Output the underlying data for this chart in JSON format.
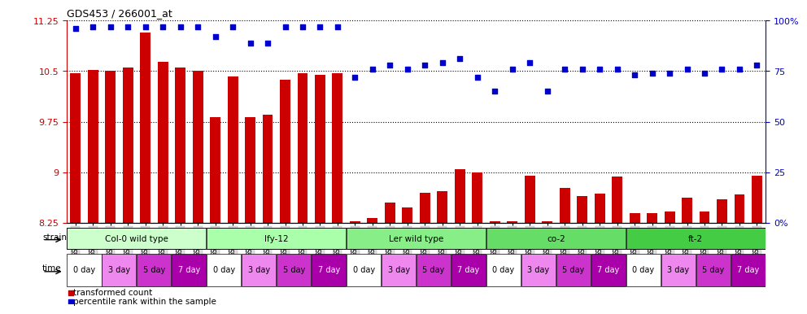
{
  "title": "GDS453 / 266001_at",
  "gsm_labels": [
    "GSM8827",
    "GSM8828",
    "GSM8829",
    "GSM8830",
    "GSM8831",
    "GSM8832",
    "GSM8833",
    "GSM8834",
    "GSM8835",
    "GSM8836",
    "GSM8837",
    "GSM8838",
    "GSM8839",
    "GSM8840",
    "GSM8841",
    "GSM8842",
    "GSM8843",
    "GSM8844",
    "GSM8845",
    "GSM8846",
    "GSM8847",
    "GSM8848",
    "GSM8849",
    "GSM8850",
    "GSM8851",
    "GSM8852",
    "GSM8853",
    "GSM8854",
    "GSM8855",
    "GSM8856",
    "GSM8857",
    "GSM8858",
    "GSM8859",
    "GSM8860",
    "GSM8861",
    "GSM8862",
    "GSM8863",
    "GSM8864",
    "GSM8865",
    "GSM8866"
  ],
  "bar_values": [
    10.47,
    10.52,
    10.5,
    10.55,
    11.07,
    10.64,
    10.55,
    10.5,
    9.82,
    10.42,
    9.82,
    9.85,
    10.37,
    10.47,
    10.45,
    10.47,
    8.27,
    8.32,
    8.55,
    8.48,
    8.7,
    8.72,
    9.05,
    9.0,
    8.27,
    8.28,
    8.95,
    8.28,
    8.77,
    8.65,
    8.68,
    8.94,
    8.4,
    8.4,
    8.42,
    8.62,
    8.42,
    8.6,
    8.67,
    8.95
  ],
  "percentile_values": [
    96,
    97,
    97,
    97,
    97,
    97,
    97,
    97,
    92,
    97,
    89,
    89,
    97,
    97,
    97,
    97,
    72,
    76,
    78,
    76,
    78,
    79,
    81,
    72,
    65,
    76,
    79,
    65,
    76,
    76,
    76,
    76,
    73,
    74,
    74,
    76,
    74,
    76,
    76,
    78
  ],
  "ylim_left": [
    8.25,
    11.25
  ],
  "ylim_right": [
    0,
    100
  ],
  "yticks_left": [
    8.25,
    9.0,
    9.75,
    10.5,
    11.25
  ],
  "yticks_right": [
    0,
    25,
    50,
    75,
    100
  ],
  "ytick_labels_left": [
    "8.25",
    "9",
    "9.75",
    "10.5",
    "11.25"
  ],
  "ytick_labels_right": [
    "0%",
    "25",
    "50",
    "75",
    "100%"
  ],
  "bar_color": "#cc0000",
  "dot_color": "#0000cc",
  "strains": [
    {
      "label": "Col-0 wild type",
      "start": 0,
      "end": 8,
      "color": "#ccffcc"
    },
    {
      "label": "lfy-12",
      "start": 8,
      "end": 16,
      "color": "#aaffaa"
    },
    {
      "label": "Ler wild type",
      "start": 16,
      "end": 24,
      "color": "#88ee88"
    },
    {
      "label": "co-2",
      "start": 24,
      "end": 32,
      "color": "#66dd66"
    },
    {
      "label": "ft-2",
      "start": 32,
      "end": 40,
      "color": "#44cc44"
    }
  ],
  "time_labels": [
    "0 day",
    "3 day",
    "5 day",
    "7 day"
  ],
  "time_colors": [
    "#ffffff",
    "#ee88ee",
    "#cc33cc",
    "#aa00aa"
  ],
  "time_text_colors": [
    "#000000",
    "#000000",
    "#000000",
    "#ffffff"
  ],
  "background_color": "#ffffff"
}
